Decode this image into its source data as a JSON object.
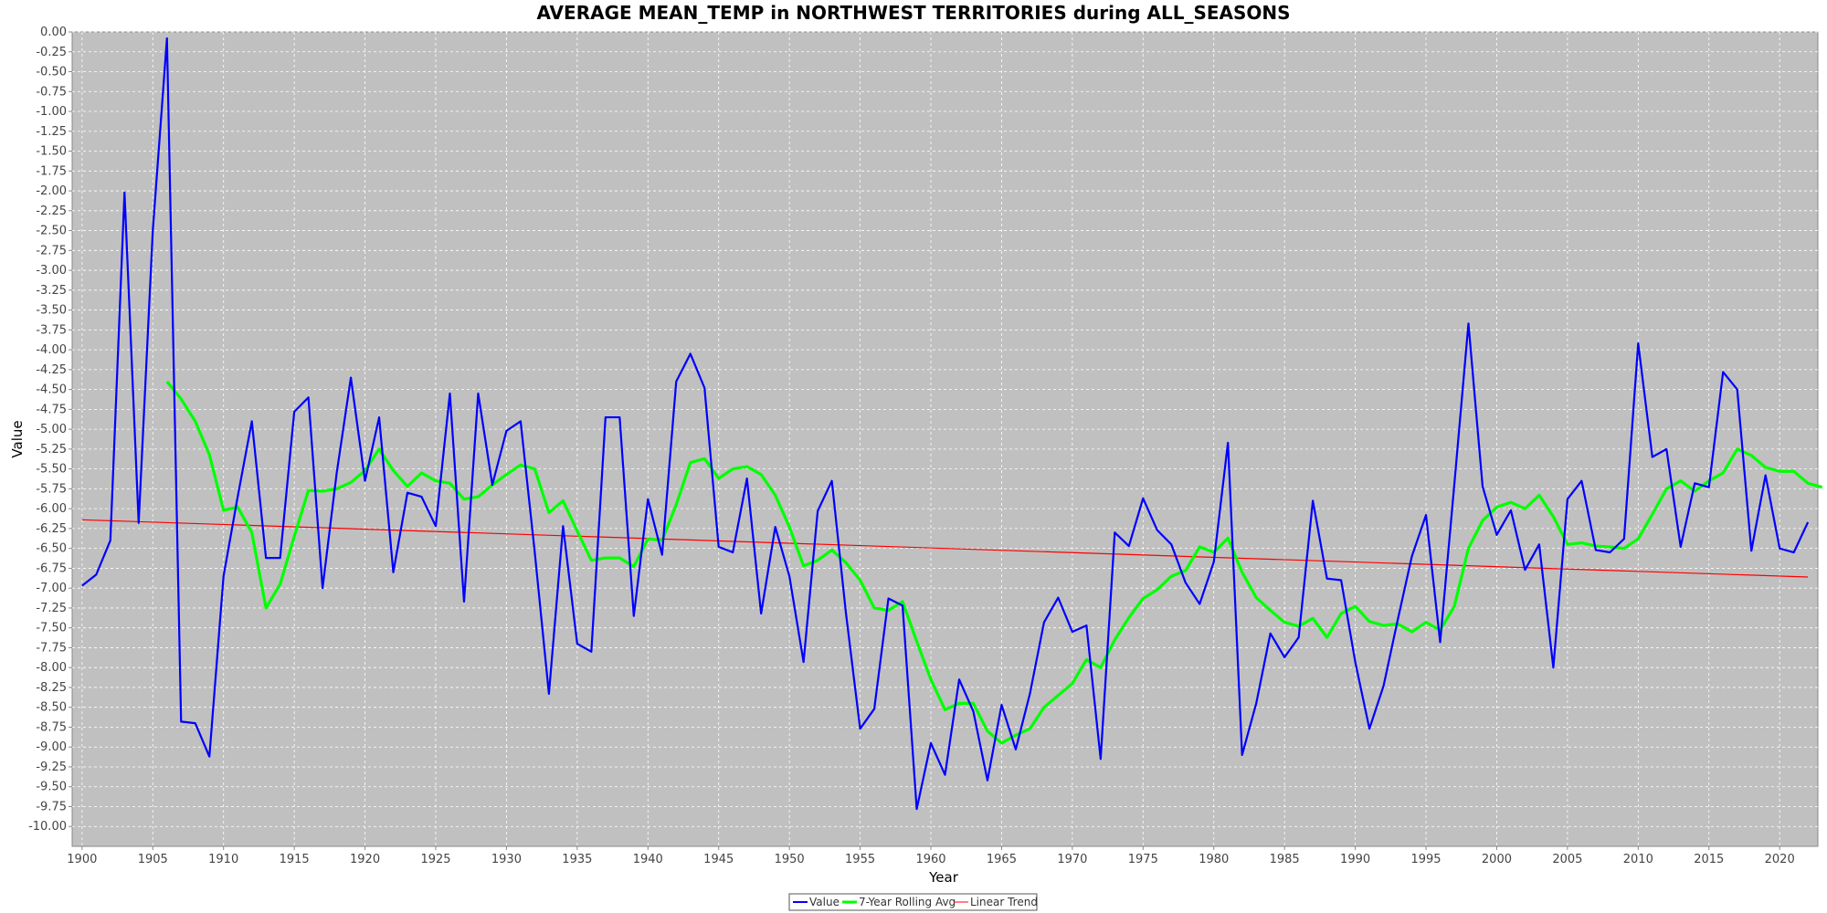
{
  "chart_data": {
    "type": "line",
    "title": "AVERAGE MEAN_TEMP in NORTHWEST TERRITORIES during ALL_SEASONS",
    "xlabel": "Year",
    "ylabel": "Value",
    "xlim": [
      1899.3,
      2022.7
    ],
    "ylim": [
      -10.25,
      0.0
    ],
    "xticks": [
      1900,
      1905,
      1910,
      1915,
      1920,
      1925,
      1930,
      1935,
      1940,
      1945,
      1950,
      1955,
      1960,
      1965,
      1970,
      1975,
      1980,
      1985,
      1990,
      1995,
      2000,
      2005,
      2010,
      2015,
      2020
    ],
    "yticks": [
      "0.00",
      "-0.25",
      "-0.50",
      "-0.75",
      "-1.00",
      "-1.25",
      "-1.50",
      "-1.75",
      "-2.00",
      "-2.25",
      "-2.50",
      "-2.75",
      "-3.00",
      "-3.25",
      "-3.50",
      "-3.75",
      "-4.00",
      "-4.25",
      "-4.50",
      "-4.75",
      "-5.00",
      "-5.25",
      "-5.50",
      "-5.75",
      "-6.00",
      "-6.25",
      "-6.50",
      "-6.75",
      "-7.00",
      "-7.25",
      "-7.50",
      "-7.75",
      "-8.00",
      "-8.25",
      "-8.50",
      "-8.75",
      "-9.00",
      "-9.25",
      "-9.50",
      "-9.75",
      "-10.00"
    ],
    "grid": true,
    "legend_position": "bottom-center",
    "background_color": "#c0c0c0",
    "series": [
      {
        "name": "Value",
        "color": "#0000ff",
        "x_start": 1900,
        "values": [
          -6.97,
          -6.83,
          -6.4,
          -2.02,
          -6.18,
          -2.5,
          -0.08,
          -8.68,
          -8.7,
          -9.12,
          -6.85,
          -5.85,
          -4.9,
          -6.62,
          -6.62,
          -4.78,
          -4.6,
          -7.0,
          -5.55,
          -4.35,
          -5.65,
          -4.85,
          -6.8,
          -5.8,
          -5.85,
          -6.22,
          -4.55,
          -7.17,
          -4.55,
          -5.7,
          -5.02,
          -4.9,
          -6.55,
          -8.33,
          -6.22,
          -7.7,
          -7.8,
          -4.85,
          -4.85,
          -7.35,
          -5.88,
          -6.58,
          -4.4,
          -4.05,
          -4.48,
          -6.48,
          -6.55,
          -5.62,
          -7.32,
          -6.23,
          -6.85,
          -7.93,
          -6.03,
          -5.65,
          -7.32,
          -8.77,
          -8.52,
          -7.13,
          -7.22,
          -9.78,
          -8.95,
          -9.35,
          -8.15,
          -8.55,
          -9.42,
          -8.47,
          -9.03,
          -8.33,
          -7.43,
          -7.12,
          -7.55,
          -7.47,
          -9.15,
          -6.3,
          -6.47,
          -5.87,
          -6.27,
          -6.45,
          -6.93,
          -7.2,
          -6.67,
          -5.17,
          -9.1,
          -8.45,
          -7.57,
          -7.87,
          -7.62,
          -5.9,
          -6.88,
          -6.9,
          -7.93,
          -8.77,
          -8.23,
          -7.4,
          -6.6,
          -6.08,
          -7.68,
          -5.7,
          -3.67,
          -5.72,
          -6.33,
          -6.02,
          -6.77,
          -6.45,
          -8.0,
          -5.88,
          -5.65,
          -6.52,
          -6.55,
          -6.38,
          -3.92,
          -5.35,
          -5.25,
          -6.48,
          -5.68,
          -5.73,
          -4.28,
          -4.5,
          -6.53,
          -5.58,
          -6.5,
          -6.55,
          -6.17
        ]
      },
      {
        "name": "7-Year Rolling Avg",
        "color": "#00ff00",
        "x_start": 1906,
        "values": [
          -4.4,
          -4.62,
          -4.9,
          -5.32,
          -6.02,
          -5.98,
          -6.3,
          -7.25,
          -6.95,
          -6.35,
          -5.77,
          -5.78,
          -5.75,
          -5.67,
          -5.52,
          -5.25,
          -5.52,
          -5.72,
          -5.55,
          -5.65,
          -5.68,
          -5.88,
          -5.85,
          -5.7,
          -5.57,
          -5.45,
          -5.5,
          -6.05,
          -5.9,
          -6.28,
          -6.65,
          -6.62,
          -6.62,
          -6.73,
          -6.38,
          -6.4,
          -5.95,
          -5.42,
          -5.37,
          -5.62,
          -5.5,
          -5.47,
          -5.57,
          -5.83,
          -6.23,
          -6.72,
          -6.65,
          -6.52,
          -6.68,
          -6.9,
          -7.25,
          -7.28,
          -7.17,
          -7.67,
          -8.15,
          -8.53,
          -8.45,
          -8.45,
          -8.8,
          -8.95,
          -8.85,
          -8.77,
          -8.5,
          -8.35,
          -8.2,
          -7.9,
          -8.0,
          -7.65,
          -7.37,
          -7.13,
          -7.02,
          -6.85,
          -6.78,
          -6.48,
          -6.55,
          -6.37,
          -6.8,
          -7.12,
          -7.28,
          -7.43,
          -7.48,
          -7.38,
          -7.62,
          -7.32,
          -7.23,
          -7.42,
          -7.47,
          -7.45,
          -7.55,
          -7.43,
          -7.53,
          -7.23,
          -6.5,
          -6.15,
          -5.98,
          -5.92,
          -6.0,
          -5.83,
          -6.1,
          -6.45,
          -6.43,
          -6.47,
          -6.48,
          -6.5,
          -6.38,
          -6.07,
          -5.75,
          -5.65,
          -5.78,
          -5.65,
          -5.55,
          -5.25,
          -5.33,
          -5.48,
          -5.53,
          -5.53,
          -5.68,
          -5.73
        ]
      },
      {
        "name": "Linear Trend",
        "color": "#ff0000",
        "x": [
          1900,
          2022
        ],
        "values": [
          -6.14,
          -6.86
        ]
      }
    ]
  }
}
